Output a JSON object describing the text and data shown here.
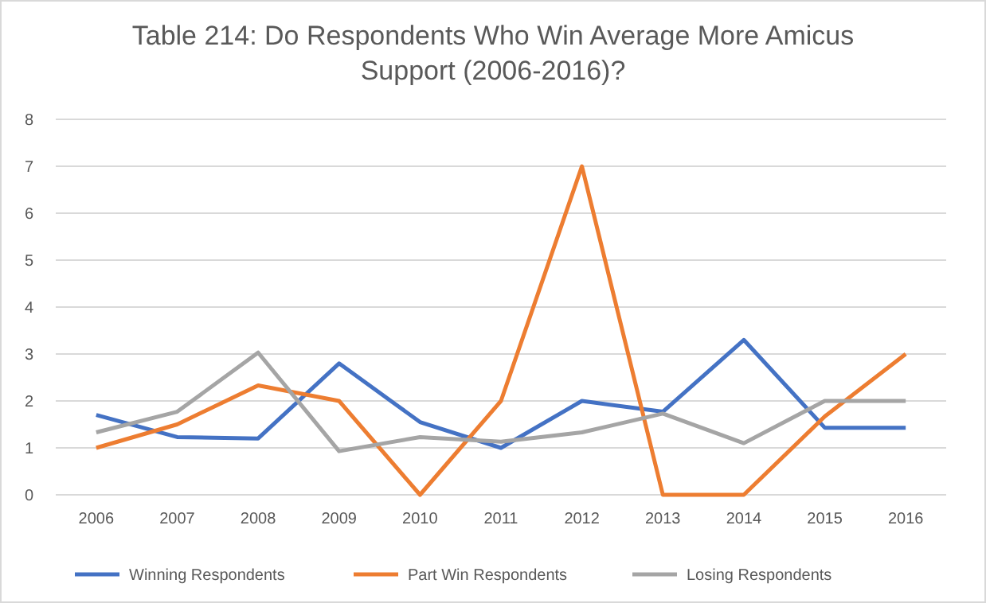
{
  "chart_data": {
    "type": "line",
    "title": "Table 214: Do Respondents Who Win Average More Amicus Support (2006-2016)?",
    "categories": [
      "2006",
      "2007",
      "2008",
      "2009",
      "2010",
      "2011",
      "2012",
      "2013",
      "2014",
      "2015",
      "2016"
    ],
    "series": [
      {
        "name": "Winning Respondents",
        "color": "#4472c4",
        "values": [
          1.7,
          1.23,
          1.2,
          2.8,
          1.55,
          1.0,
          2.0,
          1.77,
          3.3,
          1.43,
          1.43
        ]
      },
      {
        "name": "Part Win Respondents",
        "color": "#ed7d31",
        "values": [
          1.0,
          1.5,
          2.33,
          2.0,
          0,
          2.0,
          7.0,
          0,
          0,
          1.67,
          3.0
        ]
      },
      {
        "name": "Losing Respondents",
        "color": "#a5a5a5",
        "values": [
          1.33,
          1.77,
          3.03,
          0.93,
          1.23,
          1.13,
          1.33,
          1.73,
          1.1,
          2.0,
          2.0
        ]
      }
    ],
    "ylim": [
      0,
      8
    ],
    "yticks": [
      0,
      1,
      2,
      3,
      4,
      5,
      6,
      7,
      8
    ],
    "grid": "y",
    "legend": "bottom",
    "marker": "none",
    "line_style": "solid"
  }
}
